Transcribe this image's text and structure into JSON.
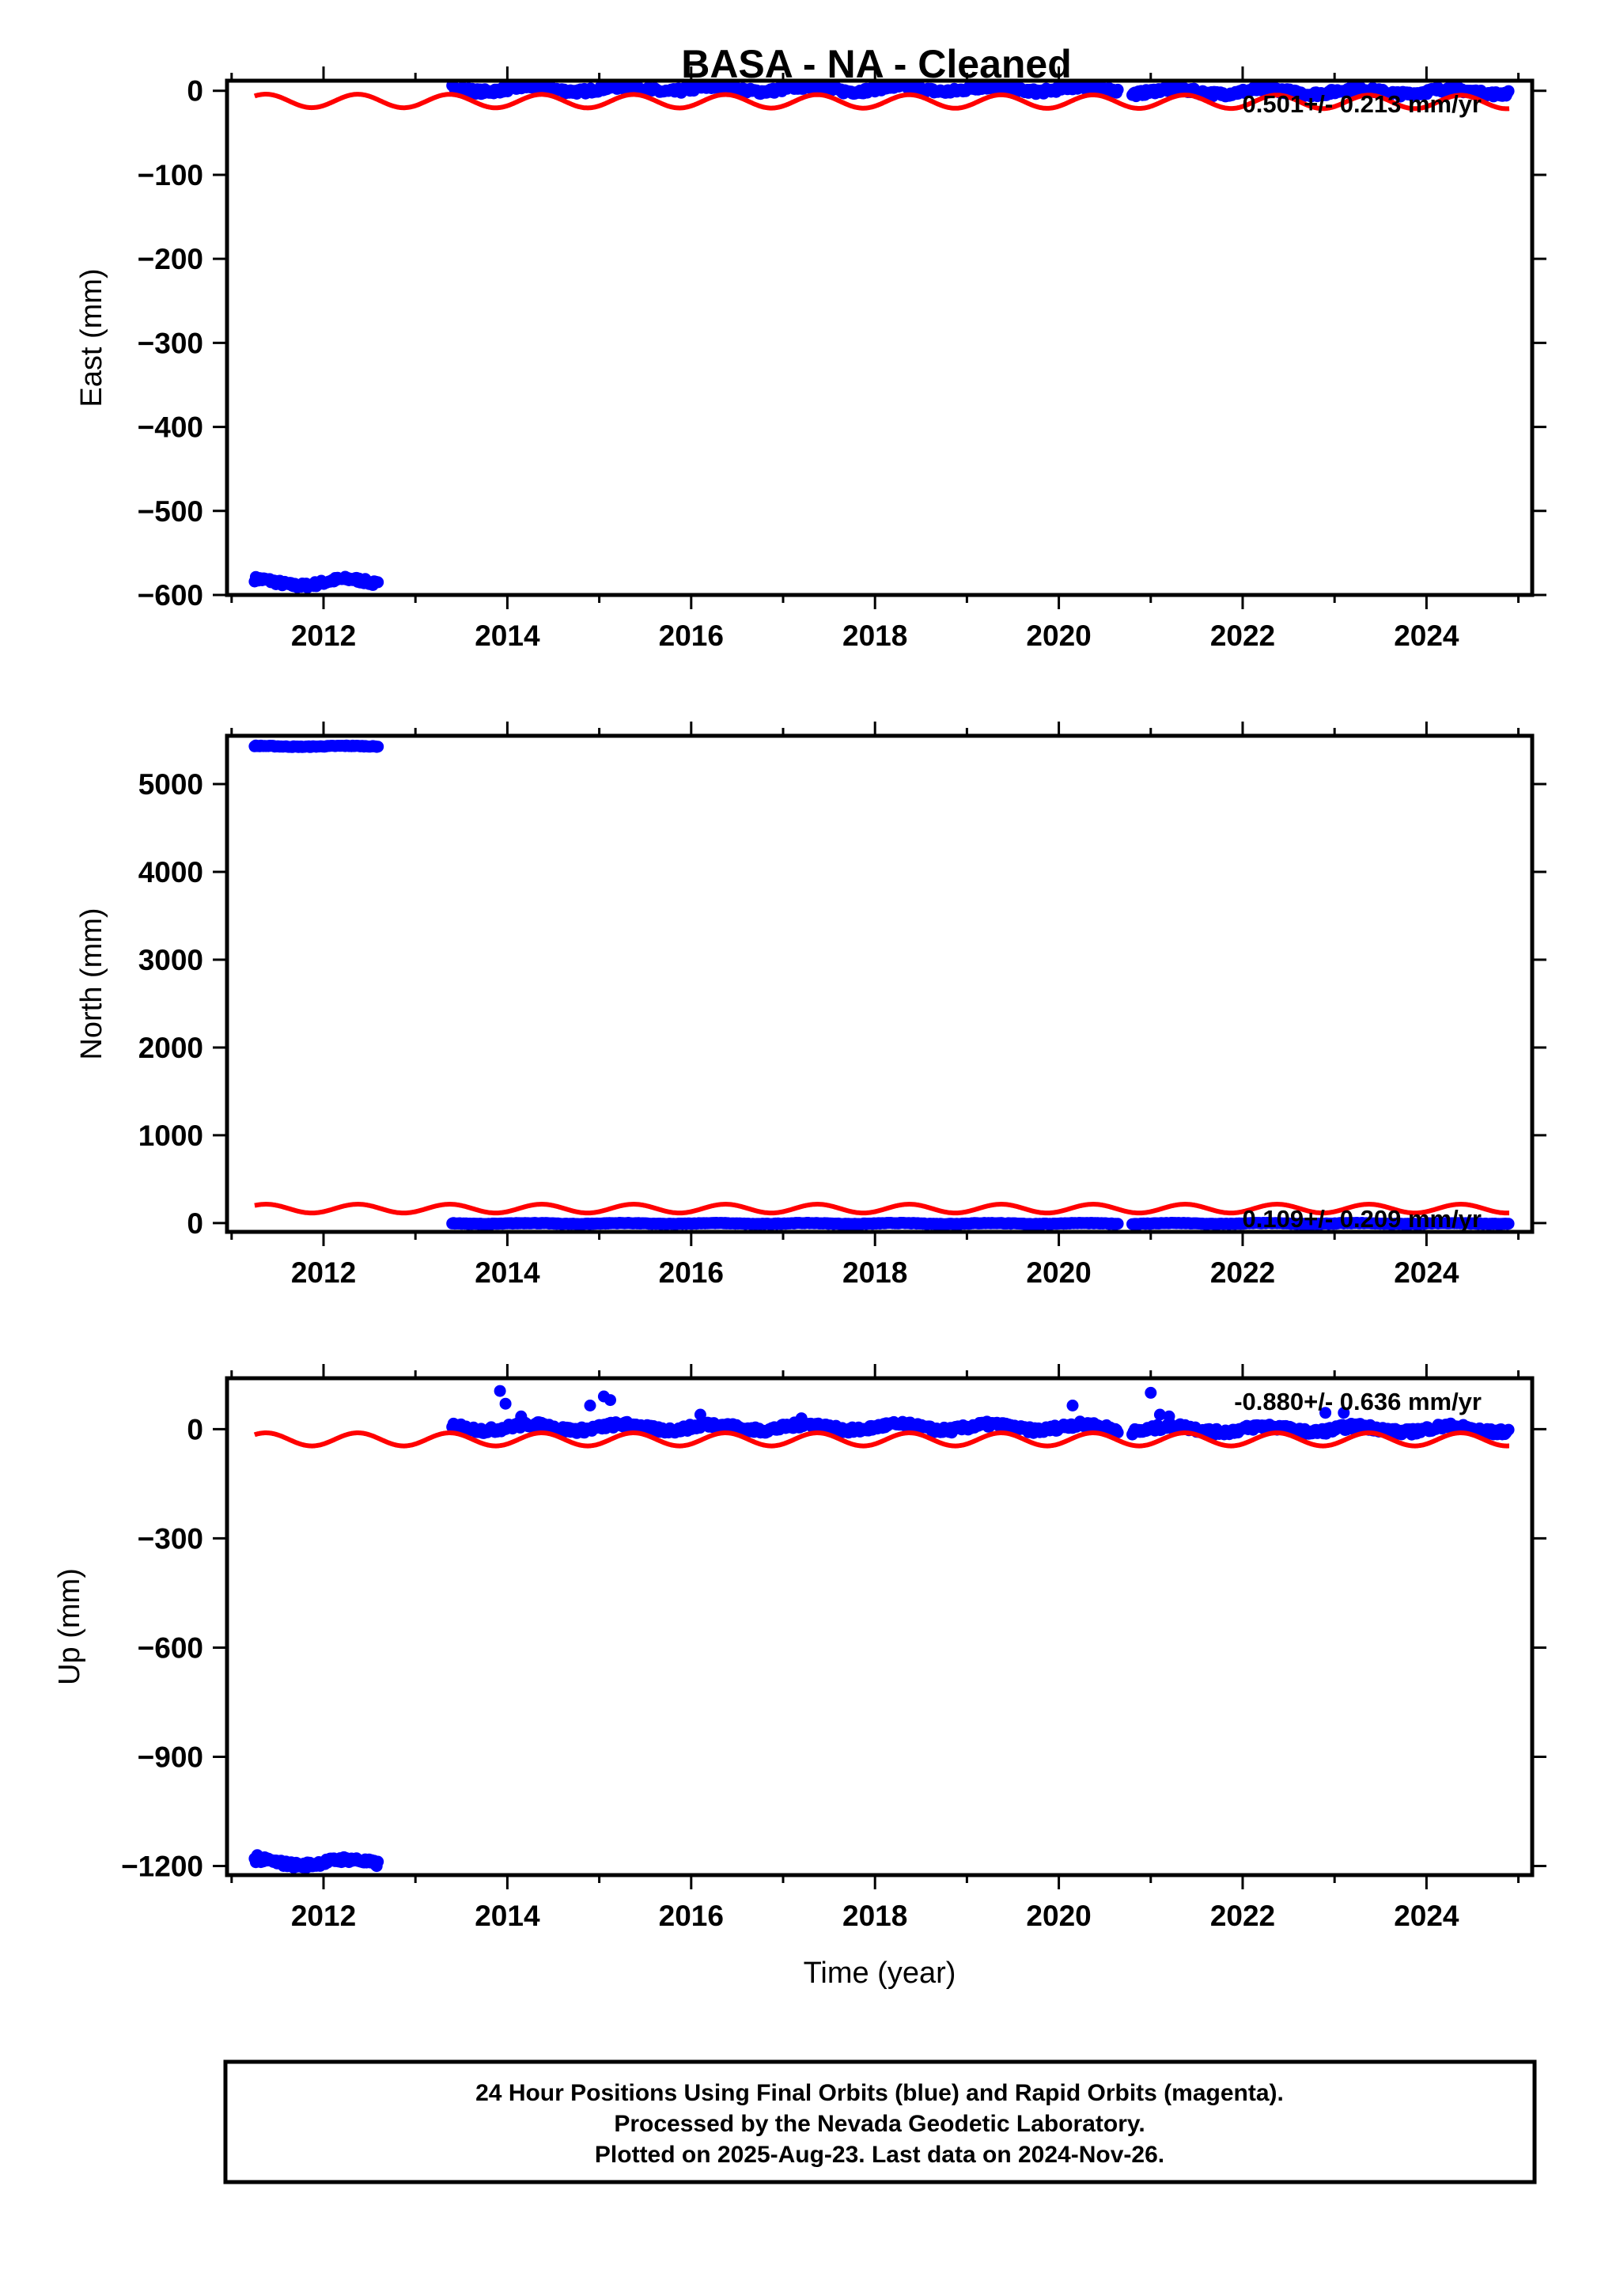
{
  "title": "BASA  - NA - Cleaned",
  "colors": {
    "final": "#0000ff",
    "model": "#ff0000",
    "frame": "#000000"
  },
  "footnote": {
    "line1": "24 Hour Positions Using Final Orbits (blue) and Rapid Orbits (magenta).",
    "line2": "Processed by the Nevada Geodetic Laboratory.",
    "line3": "Plotted on 2025-Aug-23. Last data on 2024-Nov-26."
  },
  "chart_data": [
    {
      "type": "scatter",
      "component": "east",
      "ylabel": "East (mm)",
      "xlabel": "",
      "xlim": [
        2010.95,
        2025.15
      ],
      "ylim": [
        -600,
        12
      ],
      "xticks": [
        2012,
        2014,
        2016,
        2018,
        2020,
        2022,
        2024
      ],
      "yticks": [
        0,
        -100,
        -200,
        -300,
        -400,
        -500,
        -600
      ],
      "rate_label": "0.501+/- 0.213 mm/yr",
      "rate_position": "top-right",
      "series": [
        {
          "role": "final",
          "segments": [
            {
              "start": 2011.25,
              "end": 2012.6,
              "level": -585,
              "amp": 4,
              "noise": 3
            },
            {
              "start": 2013.4,
              "end": 2020.65,
              "level": 2,
              "amp": 3,
              "noise": 3
            },
            {
              "start": 2020.8,
              "end": 2024.9,
              "level": -1,
              "amp": 3,
              "noise": 3
            }
          ]
        },
        {
          "role": "model",
          "curve": {
            "start": 2011.25,
            "end": 2024.9,
            "mean": -12,
            "slope": -0.1,
            "amplitude": 8,
            "period": 1.0
          }
        }
      ]
    },
    {
      "type": "scatter",
      "component": "north",
      "ylabel": "North (mm)",
      "xlabel": "",
      "xlim": [
        2010.95,
        2025.15
      ],
      "ylim": [
        -100,
        5550
      ],
      "xticks": [
        2012,
        2014,
        2016,
        2018,
        2020,
        2022,
        2024
      ],
      "yticks": [
        0,
        1000,
        2000,
        3000,
        4000,
        5000
      ],
      "rate_label": "0.109+/- 0.209 mm/yr",
      "rate_position": "bottom-right",
      "series": [
        {
          "role": "final",
          "segments": [
            {
              "start": 2011.25,
              "end": 2012.6,
              "level": 5430,
              "amp": 5,
              "noise": 5
            },
            {
              "start": 2013.4,
              "end": 2020.65,
              "level": -5,
              "amp": 5,
              "noise": 4
            },
            {
              "start": 2020.8,
              "end": 2024.9,
              "level": -5,
              "amp": 5,
              "noise": 4
            }
          ]
        },
        {
          "role": "model",
          "curve": {
            "start": 2011.25,
            "end": 2024.9,
            "mean": 165,
            "slope": 0,
            "amplitude": 50,
            "period": 1.0
          }
        }
      ]
    },
    {
      "type": "scatter",
      "component": "up",
      "ylabel": "Up (mm)",
      "xlabel": "Time (year)",
      "xlim": [
        2010.95,
        2025.15
      ],
      "ylim": [
        -1225,
        140
      ],
      "xticks": [
        2012,
        2014,
        2016,
        2018,
        2020,
        2022,
        2024
      ],
      "yticks": [
        0,
        -300,
        -600,
        -900,
        -1200
      ],
      "rate_label": "-0.880+/- 0.636 mm/yr",
      "rate_position": "top-right",
      "series": [
        {
          "role": "final",
          "segments": [
            {
              "start": 2011.25,
              "end": 2012.6,
              "level": -1190,
              "amp": 8,
              "noise": 8
            },
            {
              "start": 2013.4,
              "end": 2020.65,
              "level": 5,
              "amp": 8,
              "noise": 8
            },
            {
              "start": 2020.8,
              "end": 2024.9,
              "level": 0,
              "amp": 8,
              "noise": 8
            }
          ],
          "outliers": [
            [
              2011.28,
              -1170
            ],
            [
              2013.92,
              105
            ],
            [
              2013.98,
              70
            ],
            [
              2014.15,
              35
            ],
            [
              2014.9,
              65
            ],
            [
              2015.05,
              90
            ],
            [
              2015.12,
              80
            ],
            [
              2016.1,
              40
            ],
            [
              2017.2,
              30
            ],
            [
              2020.15,
              65
            ],
            [
              2021.0,
              100
            ],
            [
              2021.1,
              40
            ],
            [
              2021.2,
              35
            ],
            [
              2022.9,
              45
            ],
            [
              2023.1,
              45
            ]
          ]
        },
        {
          "role": "model",
          "curve": {
            "start": 2011.25,
            "end": 2024.9,
            "mean": -28,
            "slope": 0,
            "amplitude": 18,
            "period": 1.0
          }
        }
      ]
    }
  ]
}
